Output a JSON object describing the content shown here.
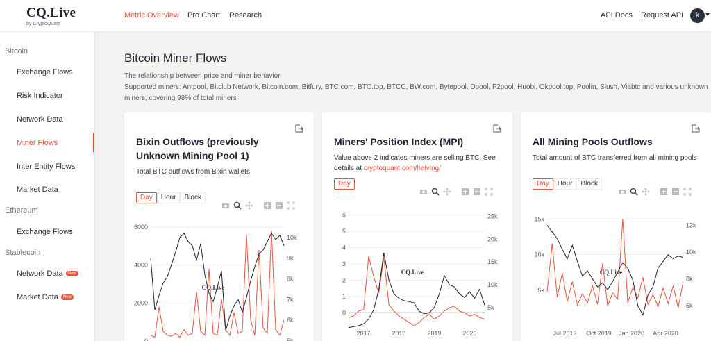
{
  "brand": {
    "name": "CQ.Live",
    "sub": "by CryptoQuant"
  },
  "nav": {
    "metric_overview": "Metric Overview",
    "pro_chart": "Pro Chart",
    "research": "Research",
    "api_docs": "API Docs",
    "request_api": "Request API",
    "avatar_letter": "k"
  },
  "sidebar": {
    "bitcoin": "Bitcoin",
    "bitcoin_items": [
      "Exchange Flows",
      "Risk Indicator",
      "Network Data",
      "Miner Flows",
      "Inter Entity Flows",
      "Market Data"
    ],
    "ethereum": "Ethereum",
    "ethereum_items": [
      "Exchange Flows"
    ],
    "stablecoin": "Stablecoin",
    "stablecoin_items": [
      "Network Data",
      "Market Data"
    ],
    "new_badge": "New"
  },
  "page": {
    "title": "Bitcoin Miner Flows",
    "desc1": "The relationship between price and miner behavior",
    "desc2": "Supported miners: Antpool, Bitclub Network, Bitcoin.com, Bitfury, BTC.com, BTC.top, BTCC, BW.com, Bytepool, Dpool, F2pool, Huobi, Okpool.top, Poolin, Slush, Viabtc and various unknown",
    "desc3": "miners, covering 98% of total miners"
  },
  "res": {
    "day": "Day",
    "hour": "Hour",
    "block": "Block"
  },
  "watermark": "CQ.Live",
  "colors": {
    "accent": "#e9533c",
    "price": "#1f2230",
    "flow": "#e9533c"
  },
  "cards": [
    {
      "title": "Bixin Outflows (previously Unknown Mining Pool 1)",
      "desc": "Total BTC outflows from Bixin wallets"
    },
    {
      "title": "Miners' Position Index (MPI)",
      "desc": "Value above 2 indicates miners are selling BTC. See details at ",
      "link": "cryptoquant.com/halving/"
    },
    {
      "title": "All Mining Pools Outflows",
      "desc": "Total amount of BTC transferred from all mining pools"
    }
  ],
  "chart_data": [
    {
      "type": "line",
      "title": "Bixin Outflows (previously Unknown Mining Pool 1)",
      "y_left_ticks": [
        "6000",
        "4000",
        "2000",
        "0"
      ],
      "y_right_ticks": [
        "10k",
        "9k",
        "8k",
        "7k",
        "6k",
        "5k"
      ],
      "ylim_left": [
        0,
        6000
      ],
      "ylim_right": [
        5000,
        10500
      ],
      "series": [
        {
          "values": [
            9000,
            6500,
            7200,
            7800,
            8100,
            8700,
            9300,
            10000,
            10200,
            9800,
            9600,
            8900,
            9700,
            8200,
            7300,
            6900,
            7600,
            8400,
            5500,
            6200,
            6700,
            7000,
            6400,
            7100,
            7900,
            8600,
            9200,
            9400,
            9800,
            10200,
            9900,
            10100,
            9600
          ]
        },
        {
          "values": [
            300,
            200,
            1800,
            500,
            300,
            250,
            400,
            200,
            600,
            300,
            400,
            2600,
            500,
            300,
            3800,
            400,
            300,
            2200,
            600,
            300,
            1500,
            400,
            500,
            5600,
            1100,
            300,
            4800,
            700,
            400,
            5800,
            600,
            300,
            1100
          ]
        }
      ]
    },
    {
      "type": "line",
      "title": "Miners' Position Index (MPI)",
      "x_ticks": [
        "2017",
        "2018",
        "2019",
        "2020"
      ],
      "y_left_ticks": [
        "6",
        "5",
        "4",
        "3",
        "2",
        "1",
        "0"
      ],
      "y_right_ticks": [
        "25k",
        "20k",
        "15k",
        "10k",
        "5k"
      ],
      "ylim_left": [
        -0.8,
        6.2
      ],
      "ylim_right": [
        1000,
        26000
      ],
      "series": [
        {
          "values": [
            600,
            800,
            1000,
            1400,
            2500,
            4500,
            9000,
            17000,
            11000,
            8000,
            7000,
            6500,
            6300,
            6000,
            4200,
            3600,
            3800,
            5000,
            8000,
            12000,
            10000,
            9500,
            8000,
            7200,
            8500,
            7000,
            9000,
            5500
          ]
        },
        {
          "values": [
            -0.3,
            -0.2,
            0.1,
            0.2,
            3.5,
            2.2,
            1.2,
            3.4,
            0.5,
            0.1,
            -0.2,
            -0.4,
            -0.6,
            -0.8,
            -0.6,
            -0.3,
            -0.1,
            -0.4,
            -0.2,
            0.1,
            0.3,
            0.4,
            0.1,
            0.0,
            -0.2,
            -0.1,
            -0.3,
            -0.4
          ]
        }
      ]
    },
    {
      "type": "line",
      "title": "All Mining Pools Outflows",
      "x_ticks": [
        "Jul 2019",
        "Oct 2019",
        "Jan 2020",
        "Apr 2020"
      ],
      "y_left_ticks": [
        "15k",
        "10k",
        "5k"
      ],
      "y_right_ticks": [
        "12k",
        "10k",
        "8k",
        "6k"
      ],
      "ylim_left": [
        0,
        16000
      ],
      "ylim_right": [
        4500,
        13000
      ],
      "series": [
        {
          "values": [
            12000,
            11500,
            11000,
            10200,
            9500,
            10500,
            9300,
            8200,
            8600,
            8000,
            7400,
            7700,
            7200,
            7800,
            8500,
            9200,
            8800,
            7900,
            6000,
            5300,
            6800,
            7400,
            8800,
            9300,
            9800,
            9500,
            9700,
            9600
          ]
        },
        {
          "values": [
            4800,
            11500,
            4000,
            7400,
            3400,
            6200,
            2900,
            4500,
            3200,
            5600,
            3000,
            8800,
            2800,
            4600,
            3700,
            15000,
            3200,
            5400,
            3900,
            6800,
            3000,
            4400,
            2700,
            5300,
            3100,
            5600,
            2500,
            6200
          ]
        }
      ]
    }
  ]
}
